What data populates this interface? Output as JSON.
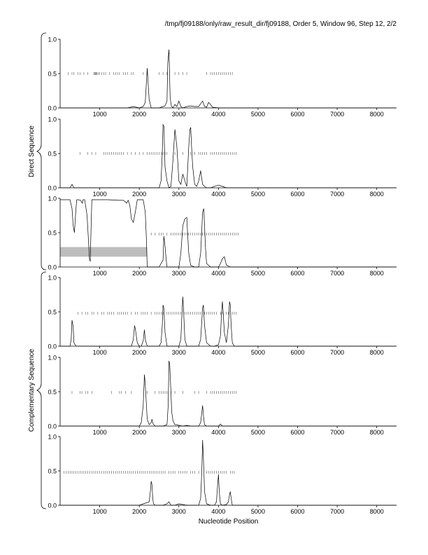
{
  "header": "/tmp/fj09188/only/raw_result_dir/fj09188, Order 5, Window 96, Step 12, 2/2",
  "group_labels": {
    "direct": "Direct Sequence",
    "complementary": "Complementary Sequence"
  },
  "colors": {
    "line": "#000000",
    "tick": "#555555",
    "band": "#bdbdbd",
    "axis": "#000000"
  },
  "chart_data": [
    {
      "type": "line",
      "group": "direct",
      "xlim": [
        0,
        8500
      ],
      "ylim": [
        0,
        1
      ],
      "xticks": [
        1000,
        2000,
        3000,
        4000,
        5000,
        6000,
        7000,
        8000
      ],
      "yticks": [
        "0.0",
        "0.5",
        "1.0"
      ],
      "xlabel": "",
      "x": [
        0,
        150,
        300,
        600,
        900,
        1200,
        1500,
        1700,
        1850,
        2000,
        2100,
        2150,
        2200,
        2250,
        2300,
        2400,
        2500,
        2600,
        2650,
        2700,
        2720,
        2750,
        2780,
        2810,
        2850,
        2900,
        2950,
        3000,
        3050,
        3100,
        3200,
        3300,
        3400,
        3500,
        3550,
        3600,
        3650,
        3700,
        3750,
        3800,
        3850,
        4000,
        4300,
        5000,
        8500
      ],
      "y": [
        0,
        0,
        0,
        0,
        0,
        0,
        0,
        0,
        0.02,
        0,
        0.02,
        0.08,
        0.58,
        0.12,
        0,
        0,
        0,
        0.02,
        0.03,
        0.1,
        0.65,
        0.85,
        0.15,
        0.03,
        0,
        0.05,
        0.02,
        0.1,
        0.02,
        0,
        0.02,
        0.03,
        0.02,
        0.02,
        0.06,
        0.1,
        0.02,
        0.01,
        0.08,
        0.05,
        0.01,
        0,
        0,
        0,
        0
      ],
      "ticks_y": 0.5,
      "ticks_x": [
        200,
        300,
        350,
        450,
        500,
        600,
        700,
        850,
        870,
        890,
        910,
        930,
        960,
        1000,
        1050,
        1100,
        1150,
        1250,
        1350,
        1400,
        1450,
        1500,
        1600,
        1650,
        1700,
        1800,
        1850,
        2100,
        2200,
        2500,
        2600,
        2700,
        2900,
        3000,
        3100,
        3200,
        3700,
        3800,
        3850,
        3900,
        3950,
        4000,
        4050,
        4100,
        4150,
        4200,
        4250,
        4300,
        4350
      ]
    },
    {
      "type": "line",
      "group": "direct",
      "xlim": [
        0,
        8500
      ],
      "ylim": [
        0,
        1
      ],
      "xticks": [
        1000,
        2000,
        3000,
        4000,
        5000,
        6000,
        7000,
        8000
      ],
      "yticks": [
        "0.0",
        "0.5",
        "1.0"
      ],
      "xlabel": "",
      "x": [
        0,
        250,
        300,
        350,
        600,
        1000,
        1500,
        2000,
        2200,
        2400,
        2500,
        2550,
        2580,
        2600,
        2620,
        2650,
        2700,
        2750,
        2800,
        2850,
        2900,
        2950,
        3000,
        3050,
        3100,
        3150,
        3200,
        3250,
        3280,
        3300,
        3320,
        3350,
        3400,
        3450,
        3500,
        3550,
        3600,
        3650,
        3700,
        3800,
        4000,
        4100,
        4200,
        5000,
        8500
      ],
      "y": [
        0,
        0,
        0.05,
        0,
        0,
        0,
        0,
        0,
        0,
        0,
        0,
        0.1,
        0.5,
        0.92,
        0.9,
        0.3,
        0.1,
        0,
        0.02,
        0.4,
        0.85,
        0.6,
        0.1,
        0.05,
        0.2,
        0.1,
        0.02,
        0.6,
        0.85,
        0.88,
        0.6,
        0.3,
        0.05,
        0.02,
        0.1,
        0.25,
        0.05,
        0.02,
        0,
        0,
        0.04,
        0.02,
        0,
        0,
        0
      ],
      "ticks_y": 0.5,
      "ticks_x": [
        500,
        700,
        800,
        900,
        1100,
        1150,
        1200,
        1250,
        1300,
        1350,
        1400,
        1450,
        1500,
        1550,
        1600,
        1700,
        1800,
        1900,
        2000,
        2100,
        2200,
        2250,
        2300,
        2350,
        2400,
        2450,
        2500,
        2550,
        2600,
        2650,
        2700,
        2900,
        3100,
        3300,
        3400,
        3500,
        3550,
        3600,
        3650,
        3700,
        3800,
        3850,
        3900,
        3950,
        4000,
        4050,
        4100,
        4150,
        4200,
        4250,
        4300,
        4350,
        4400,
        4450
      ]
    },
    {
      "type": "line",
      "group": "direct",
      "xlim": [
        0,
        8500
      ],
      "ylim": [
        0,
        1
      ],
      "xticks": [
        1000,
        2000,
        3000,
        4000,
        5000,
        6000,
        7000,
        8000
      ],
      "yticks": [
        "0.0",
        "0.5",
        "1.0"
      ],
      "xlabel": "",
      "x": [
        0,
        250,
        300,
        330,
        360,
        400,
        420,
        450,
        520,
        560,
        580,
        620,
        680,
        700,
        720,
        740,
        760,
        800,
        850,
        1000,
        1200,
        1500,
        1600,
        1680,
        1720,
        1760,
        1800,
        1850,
        1900,
        1950,
        2000,
        2100,
        2150,
        2180,
        2200,
        2300,
        2500,
        2600,
        2620,
        2650,
        2680,
        2700,
        2750,
        2800,
        2900,
        3000,
        3050,
        3100,
        3150,
        3200,
        3220,
        3250,
        3300,
        3400,
        3500,
        3550,
        3600,
        3630,
        3650,
        3670,
        3700,
        3800,
        3900,
        4000,
        4050,
        4100,
        4150,
        4200,
        4300,
        5000,
        8500
      ],
      "y": [
        0.98,
        0.98,
        0.85,
        0.6,
        0.5,
        0.85,
        0.98,
        0.98,
        0.97,
        0.93,
        0.98,
        0.98,
        0.75,
        0.55,
        0.35,
        0.12,
        0.08,
        0.98,
        0.98,
        0.98,
        0.98,
        0.97,
        0.97,
        0.93,
        0.97,
        0.9,
        0.7,
        0.65,
        0.8,
        0.98,
        0.98,
        0.98,
        0.8,
        0.4,
        0,
        0,
        0,
        0.1,
        0.45,
        0.3,
        0.1,
        0,
        0,
        0,
        0,
        0,
        0.2,
        0.6,
        0.7,
        0.72,
        0.5,
        0.2,
        0.02,
        0,
        0,
        0.2,
        0.8,
        0.85,
        0.6,
        0.3,
        0.05,
        0,
        0,
        0,
        0.05,
        0.12,
        0.15,
        0.03,
        0,
        0,
        0
      ],
      "ticks_y": 0.48,
      "ticks_x": [
        2300,
        2400,
        2500,
        2550,
        2600,
        2700,
        2800,
        2850,
        2900,
        2950,
        3000,
        3050,
        3100,
        3150,
        3200,
        3250,
        3300,
        3350,
        3400,
        3450,
        3500,
        3550,
        3600,
        3650,
        3700,
        3750,
        3800,
        3850,
        3900,
        3950,
        4000,
        4050,
        4100,
        4150,
        4200,
        4250,
        4300,
        4350,
        4400,
        4450,
        4500
      ],
      "band": {
        "x": [
          0,
          2200
        ],
        "y": [
          0.15,
          0.29
        ]
      }
    },
    {
      "type": "line",
      "group": "complementary",
      "xlim": [
        0,
        8500
      ],
      "ylim": [
        0,
        1
      ],
      "xticks": [
        1000,
        2000,
        3000,
        4000,
        5000,
        6000,
        7000,
        8000
      ],
      "yticks": [
        "0.0",
        "0.5",
        "1.0"
      ],
      "xlabel": "",
      "x": [
        0,
        250,
        280,
        300,
        330,
        350,
        400,
        600,
        1000,
        1500,
        1800,
        1850,
        1880,
        1900,
        1950,
        2000,
        2050,
        2100,
        2130,
        2150,
        2200,
        2300,
        2500,
        2550,
        2580,
        2600,
        2620,
        2650,
        2700,
        2800,
        2900,
        3000,
        3050,
        3080,
        3100,
        3120,
        3150,
        3200,
        3300,
        3400,
        3500,
        3550,
        3600,
        3620,
        3650,
        3700,
        3800,
        3900,
        4000,
        4050,
        4080,
        4100,
        4120,
        4150,
        4200,
        4250,
        4280,
        4300,
        4320,
        4350,
        4400,
        4600,
        5000,
        8500
      ],
      "y": [
        0,
        0,
        0.1,
        0.38,
        0.28,
        0.05,
        0,
        0,
        0,
        0,
        0,
        0.1,
        0.3,
        0.25,
        0.05,
        0,
        0,
        0.08,
        0.24,
        0.1,
        0,
        0,
        0,
        0.05,
        0.3,
        0.6,
        0.55,
        0.2,
        0,
        0,
        0,
        0,
        0.1,
        0.5,
        0.72,
        0.5,
        0.1,
        0,
        0,
        0,
        0,
        0.1,
        0.55,
        0.6,
        0.3,
        0.05,
        0,
        0,
        0.02,
        0.15,
        0.5,
        0.65,
        0.5,
        0.2,
        0.05,
        0.3,
        0.65,
        0.6,
        0.3,
        0.05,
        0,
        0,
        0,
        0
      ],
      "ticks_y": 0.48,
      "ticks_x": [
        450,
        550,
        650,
        700,
        800,
        850,
        950,
        1050,
        1100,
        1200,
        1250,
        1300,
        1350,
        1450,
        1500,
        1550,
        1600,
        1650,
        1700,
        1800,
        1900,
        1950,
        2050,
        2100,
        2150,
        2200,
        2300,
        2400,
        2450,
        2500,
        2550,
        2600,
        2700,
        2750,
        2800,
        2850,
        2900,
        2950,
        3000,
        3050,
        3150,
        3200,
        3250,
        3300,
        3350,
        3400,
        3450,
        3500,
        3550,
        3650,
        3700,
        3750,
        3800,
        3850,
        3900,
        3950,
        4050,
        4100,
        4200,
        4250,
        4350,
        4400,
        4450
      ]
    },
    {
      "type": "line",
      "group": "complementary",
      "xlim": [
        0,
        8500
      ],
      "ylim": [
        0,
        1
      ],
      "xticks": [
        1000,
        2000,
        3000,
        4000,
        5000,
        6000,
        7000,
        8000
      ],
      "yticks": [
        "0.0",
        "0.5",
        "1.0"
      ],
      "xlabel": "",
      "x": [
        0,
        1000,
        1500,
        2000,
        2050,
        2100,
        2130,
        2150,
        2180,
        2200,
        2250,
        2300,
        2320,
        2350,
        2400,
        2600,
        2700,
        2730,
        2750,
        2770,
        2800,
        2820,
        2850,
        2900,
        2950,
        3000,
        3100,
        3200,
        3300,
        3400,
        3500,
        3550,
        3580,
        3600,
        3630,
        3650,
        3700,
        3800,
        4000,
        4050,
        4100,
        5000,
        8500
      ],
      "y": [
        0,
        0,
        0,
        0,
        0.05,
        0.3,
        0.75,
        0.6,
        0.3,
        0.1,
        0.02,
        0.05,
        0.1,
        0.03,
        0,
        0,
        0.02,
        0.3,
        0.95,
        0.9,
        0.5,
        0.2,
        0.08,
        0.02,
        0.02,
        0.01,
        0,
        0.01,
        0,
        0,
        0,
        0.05,
        0.2,
        0.3,
        0.1,
        0.02,
        0,
        0,
        0,
        0.03,
        0,
        0,
        0
      ],
      "ticks_y": 0.49,
      "ticks_x": [
        300,
        500,
        550,
        650,
        700,
        800,
        1300,
        1500,
        1550,
        1650,
        1800,
        2200,
        2400,
        2500,
        2550,
        2600,
        2650,
        2700,
        2800,
        2900,
        3100,
        3400,
        3500,
        3700,
        3800,
        3850,
        3900,
        3950,
        4000,
        4050,
        4100,
        4150,
        4200,
        4250,
        4300,
        4350,
        4400,
        4450
      ]
    },
    {
      "type": "line",
      "group": "complementary",
      "xlim": [
        0,
        8500
      ],
      "ylim": [
        0,
        1
      ],
      "xticks": [
        1000,
        2000,
        3000,
        4000,
        5000,
        6000,
        7000,
        8000
      ],
      "yticks": [
        "0.0",
        "0.5",
        "1.0"
      ],
      "xlabel": "Nucleotide Position",
      "x": [
        0,
        1000,
        2000,
        2250,
        2280,
        2300,
        2320,
        2340,
        2360,
        2400,
        2600,
        2700,
        2750,
        2800,
        2900,
        3000,
        3200,
        3400,
        3500,
        3550,
        3580,
        3600,
        3620,
        3650,
        3700,
        3800,
        3900,
        3950,
        3980,
        4000,
        4020,
        4050,
        4100,
        4200,
        4250,
        4280,
        4300,
        4320,
        4350,
        5000,
        8500
      ],
      "y": [
        0,
        0,
        0,
        0.05,
        0.2,
        0.35,
        0.3,
        0.1,
        0.02,
        0,
        0,
        0.02,
        0.05,
        0,
        0,
        0.02,
        0,
        0,
        0,
        0.1,
        0.5,
        0.95,
        0.7,
        0.2,
        0.02,
        0,
        0,
        0.05,
        0.3,
        0.45,
        0.2,
        0.02,
        0,
        0.01,
        0.05,
        0.15,
        0.2,
        0.1,
        0,
        0,
        0
      ],
      "ticks_y": 0.48,
      "ticks_x": [
        100,
        150,
        200,
        250,
        300,
        350,
        400,
        450,
        500,
        550,
        600,
        650,
        700,
        750,
        800,
        850,
        900,
        950,
        1000,
        1050,
        1100,
        1150,
        1200,
        1250,
        1300,
        1350,
        1400,
        1450,
        1500,
        1550,
        1600,
        1650,
        1700,
        1750,
        1800,
        1850,
        1900,
        1950,
        2000,
        2050,
        2100,
        2150,
        2200,
        2250,
        2300,
        2350,
        2400,
        2450,
        2500,
        2550,
        2600,
        2650,
        2750,
        2800,
        2850,
        2900,
        3000,
        3050,
        3100,
        3150,
        3200,
        3300,
        3350,
        3400,
        3500,
        3700,
        3750,
        3800,
        3850,
        3900,
        3950,
        4000,
        4050,
        4100,
        4150,
        4200,
        4300,
        4350,
        4400
      ]
    }
  ]
}
